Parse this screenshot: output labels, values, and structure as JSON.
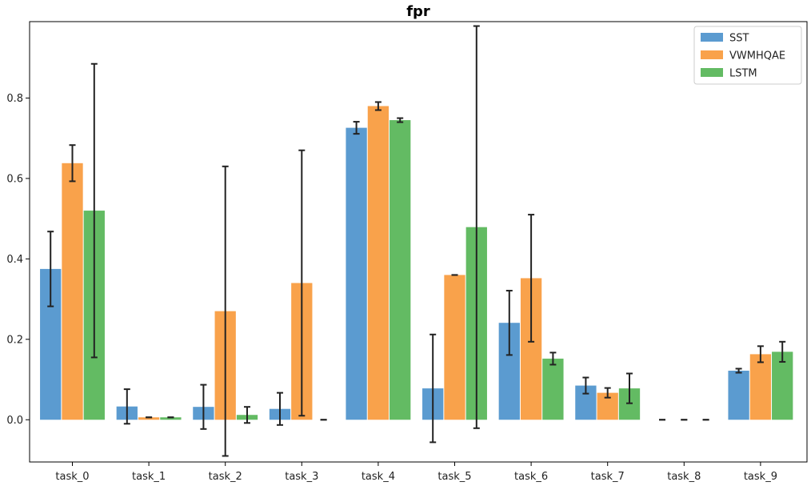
{
  "chart_data": {
    "type": "bar",
    "title": "fpr",
    "xlabel": "",
    "ylabel": "",
    "categories": [
      "task_0",
      "task_1",
      "task_2",
      "task_3",
      "task_4",
      "task_5",
      "task_6",
      "task_7",
      "task_8",
      "task_9"
    ],
    "ylim": [
      -0.105,
      0.99
    ],
    "yticks": [
      0.0,
      0.2,
      0.4,
      0.6,
      0.8
    ],
    "ytick_labels": [
      "0.0",
      "0.2",
      "0.4",
      "0.6",
      "0.8"
    ],
    "grid": false,
    "legend_position": "top-right",
    "error_bars": true,
    "series": [
      {
        "name": "SST",
        "color": "#5b9bd0",
        "values": [
          0.375,
          0.033,
          0.032,
          0.027,
          0.726,
          0.078,
          0.241,
          0.085,
          0.0,
          0.122
        ],
        "errors": [
          0.093,
          0.043,
          0.055,
          0.04,
          0.015,
          0.134,
          0.08,
          0.02,
          0.0,
          0.005
        ]
      },
      {
        "name": "VWMHQAE",
        "color": "#f9a24b",
        "values": [
          0.638,
          0.006,
          0.27,
          0.34,
          0.78,
          0.36,
          0.352,
          0.067,
          0.0,
          0.163
        ],
        "errors": [
          0.045,
          0.0,
          0.36,
          0.33,
          0.01,
          0.0,
          0.158,
          0.012,
          0.0,
          0.02
        ]
      },
      {
        "name": "LSTM",
        "color": "#63bb63",
        "values": [
          0.52,
          0.006,
          0.012,
          0.0,
          0.745,
          0.479,
          0.152,
          0.078,
          0.0,
          0.169
        ],
        "errors": [
          0.365,
          0.0,
          0.02,
          0.0,
          0.005,
          0.5,
          0.015,
          0.037,
          0.0,
          0.025
        ]
      }
    ]
  }
}
